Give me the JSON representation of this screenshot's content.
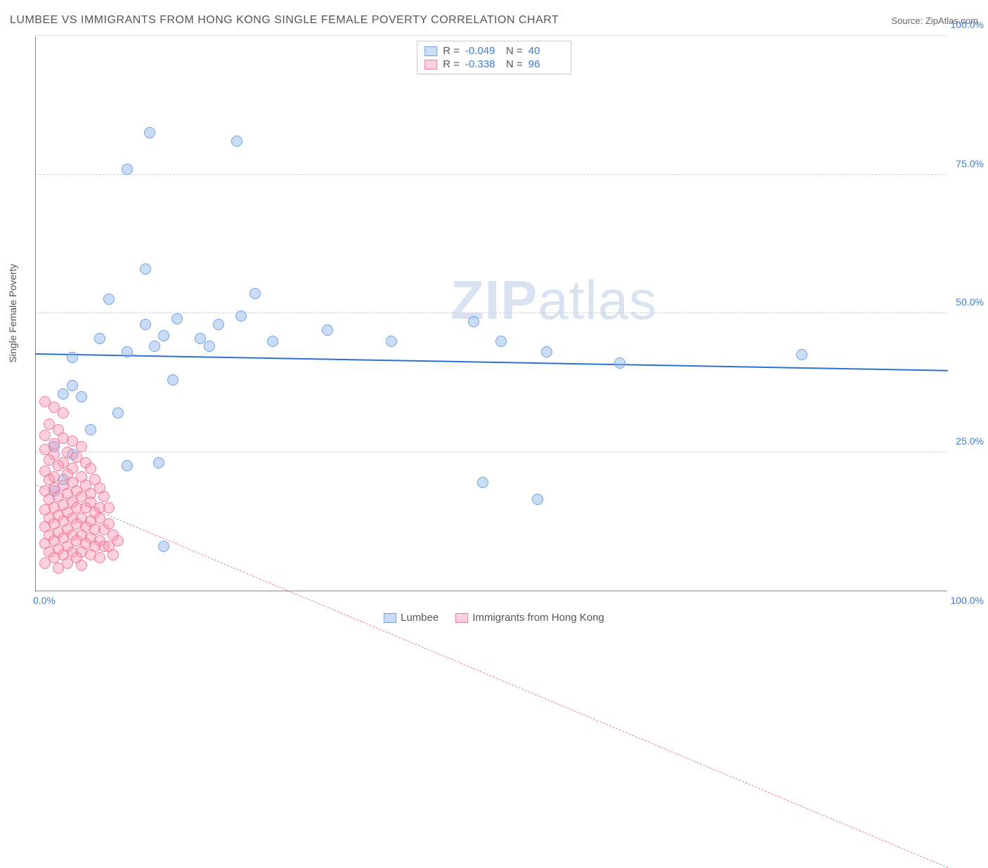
{
  "title": "LUMBEE VS IMMIGRANTS FROM HONG KONG SINGLE FEMALE POVERTY CORRELATION CHART",
  "source_label": "Source:",
  "source_name": "ZipAtlas.com",
  "y_axis_title": "Single Female Poverty",
  "watermark_bold": "ZIP",
  "watermark_rest": "atlas",
  "chart": {
    "xlim": [
      0,
      100
    ],
    "ylim": [
      0,
      100
    ],
    "x_ticks": [
      {
        "v": 0,
        "label": "0.0%"
      },
      {
        "v": 100,
        "label": "100.0%"
      }
    ],
    "y_ticks": [
      {
        "v": 25,
        "label": "25.0%"
      },
      {
        "v": 50,
        "label": "50.0%"
      },
      {
        "v": 75,
        "label": "75.0%"
      },
      {
        "v": 100,
        "label": "100.0%"
      }
    ],
    "marker_radius": 8,
    "marker_stroke_width": 1.5,
    "series": [
      {
        "name": "Lumbee",
        "fill": "rgba(140,180,235,0.45)",
        "stroke": "#6fa3e0",
        "r_value": "-0.049",
        "n_value": "40",
        "trend": {
          "y_at_x0": 42.5,
          "y_at_x100": 39.5,
          "color": "#2f6fd0",
          "width": 2.5,
          "dash": false
        },
        "points": [
          [
            12.5,
            82.5
          ],
          [
            22,
            81
          ],
          [
            10,
            76
          ],
          [
            12,
            58
          ],
          [
            8,
            52.5
          ],
          [
            24,
            53.5
          ],
          [
            12,
            48
          ],
          [
            15.5,
            49
          ],
          [
            20,
            48
          ],
          [
            22.5,
            49.5
          ],
          [
            7,
            45.5
          ],
          [
            14,
            46
          ],
          [
            18,
            45.5
          ],
          [
            32,
            47
          ],
          [
            4,
            42
          ],
          [
            10,
            43
          ],
          [
            13,
            44
          ],
          [
            19,
            44
          ],
          [
            26,
            45
          ],
          [
            39,
            45
          ],
          [
            51,
            45
          ],
          [
            56,
            43
          ],
          [
            64,
            41
          ],
          [
            84,
            42.5
          ],
          [
            15,
            38
          ],
          [
            4,
            37
          ],
          [
            3,
            35.5
          ],
          [
            5,
            35
          ],
          [
            9,
            32
          ],
          [
            6,
            29
          ],
          [
            2,
            26
          ],
          [
            4,
            24.5
          ],
          [
            10,
            22.5
          ],
          [
            13.5,
            23
          ],
          [
            49,
            19.5
          ],
          [
            55,
            16.5
          ],
          [
            3,
            20
          ],
          [
            2,
            18
          ],
          [
            14,
            8
          ],
          [
            48,
            48.5
          ]
        ]
      },
      {
        "name": "Immigrants from Hong Kong",
        "fill": "rgba(250,150,180,0.45)",
        "stroke": "#ec7da0",
        "r_value": "-0.338",
        "n_value": "96",
        "trend": {
          "y_at_x0": 19,
          "y_at_x100": -50,
          "color": "#ec7da0",
          "width": 1.5,
          "dash": true
        },
        "points": [
          [
            1,
            34
          ],
          [
            2,
            33
          ],
          [
            3,
            32
          ],
          [
            1.5,
            30
          ],
          [
            2.5,
            29
          ],
          [
            1,
            28
          ],
          [
            3,
            27.5
          ],
          [
            4,
            27
          ],
          [
            2,
            26.5
          ],
          [
            5,
            26
          ],
          [
            1,
            25.5
          ],
          [
            3.5,
            25
          ],
          [
            2,
            24.5
          ],
          [
            4.5,
            24
          ],
          [
            1.5,
            23.5
          ],
          [
            3,
            23
          ],
          [
            5.5,
            23
          ],
          [
            2.5,
            22.5
          ],
          [
            4,
            22
          ],
          [
            1,
            21.5
          ],
          [
            6,
            22
          ],
          [
            3.5,
            21
          ],
          [
            2,
            20.5
          ],
          [
            5,
            20.5
          ],
          [
            1.5,
            20
          ],
          [
            4,
            19.5
          ],
          [
            6.5,
            20
          ],
          [
            3,
            19
          ],
          [
            2,
            18.5
          ],
          [
            5.5,
            19
          ],
          [
            1,
            18
          ],
          [
            4.5,
            18
          ],
          [
            7,
            18.5
          ],
          [
            3.5,
            17.5
          ],
          [
            2.5,
            17
          ],
          [
            6,
            17.5
          ],
          [
            1.5,
            16.5
          ],
          [
            5,
            17
          ],
          [
            4,
            16
          ],
          [
            3,
            15.5
          ],
          [
            7.5,
            17
          ],
          [
            2,
            15
          ],
          [
            6,
            16
          ],
          [
            1,
            14.5
          ],
          [
            4.5,
            15
          ],
          [
            5.5,
            15
          ],
          [
            3.5,
            14
          ],
          [
            2.5,
            13.5
          ],
          [
            7,
            15
          ],
          [
            1.5,
            13
          ],
          [
            6.5,
            14
          ],
          [
            4,
            13
          ],
          [
            3,
            12.5
          ],
          [
            5,
            13
          ],
          [
            2,
            12
          ],
          [
            8,
            15
          ],
          [
            1,
            11.5
          ],
          [
            6,
            12.5
          ],
          [
            4.5,
            12
          ],
          [
            3.5,
            11
          ],
          [
            7,
            13
          ],
          [
            2.5,
            10.5
          ],
          [
            5.5,
            11.5
          ],
          [
            1.5,
            10
          ],
          [
            4,
            10
          ],
          [
            6.5,
            11
          ],
          [
            3,
            9.5
          ],
          [
            8,
            12
          ],
          [
            2,
            9
          ],
          [
            5,
            10
          ],
          [
            7.5,
            11
          ],
          [
            1,
            8.5
          ],
          [
            4.5,
            9
          ],
          [
            6,
            9.5
          ],
          [
            3.5,
            8
          ],
          [
            8.5,
            10
          ],
          [
            2.5,
            7.5
          ],
          [
            5.5,
            8.5
          ],
          [
            7,
            9
          ],
          [
            1.5,
            7
          ],
          [
            4,
            7
          ],
          [
            6.5,
            8
          ],
          [
            3,
            6.5
          ],
          [
            9,
            9
          ],
          [
            2,
            6
          ],
          [
            5,
            7
          ],
          [
            7.5,
            8
          ],
          [
            1,
            5
          ],
          [
            4.5,
            6
          ],
          [
            8,
            8
          ],
          [
            3.5,
            5
          ],
          [
            6,
            6.5
          ],
          [
            2.5,
            4
          ],
          [
            7,
            6
          ],
          [
            5,
            4.5
          ],
          [
            8.5,
            6.5
          ]
        ]
      }
    ]
  },
  "legend_labels": {
    "r_prefix": "R =",
    "n_prefix": "N ="
  }
}
